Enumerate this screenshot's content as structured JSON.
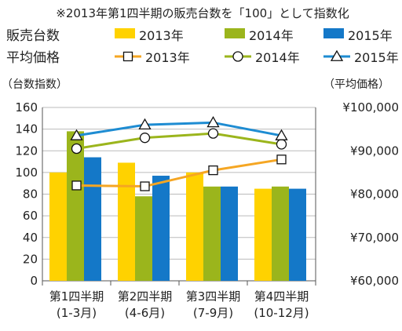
{
  "chart_data": {
    "type": "bar",
    "note": "※2013年第1四半期の販売台数を「100」として指数化",
    "legend": {
      "bar_heading": "販売台数",
      "line_heading": "平均価格",
      "labels": [
        "2013年",
        "2014年",
        "2015年"
      ]
    },
    "categories": [
      {
        "line1": "第1四半期",
        "line2": "(1-3月)"
      },
      {
        "line1": "第2四半期",
        "line2": "(4-6月)"
      },
      {
        "line1": "第3四半期",
        "line2": "(7-9月)"
      },
      {
        "line1": "第4四半期",
        "line2": "(10-12月)"
      }
    ],
    "left_axis": {
      "label": "（台数指数）",
      "ylim": [
        0,
        160
      ],
      "ticks": [
        "0",
        "20",
        "40",
        "60",
        "80",
        "100",
        "120",
        "140",
        "160"
      ]
    },
    "right_axis": {
      "label": "（平均価格）",
      "ylim": [
        60000,
        100000
      ],
      "ticks": [
        "¥60,000",
        "¥70,000",
        "¥80,000",
        "¥90,000",
        "¥100,000"
      ]
    },
    "bar_series": [
      {
        "name": "2013年",
        "color": "#FFD200",
        "values": [
          100,
          109,
          100,
          85
        ]
      },
      {
        "name": "2014年",
        "color": "#9BB51C",
        "values": [
          138,
          78,
          87,
          87
        ]
      },
      {
        "name": "2015年",
        "color": "#1478C8",
        "values": [
          114,
          97,
          87,
          85
        ]
      }
    ],
    "line_series": [
      {
        "name": "2013年",
        "color": "#F5A623",
        "marker": "square",
        "values": [
          82000,
          81800,
          85500,
          88000
        ]
      },
      {
        "name": "2014年",
        "color": "#9BB51C",
        "marker": "circle",
        "values": [
          90500,
          93000,
          94000,
          91500
        ]
      },
      {
        "name": "2015年",
        "color": "#1E8CD2",
        "marker": "triangle",
        "values": [
          93500,
          96000,
          96500,
          93500
        ]
      }
    ],
    "grid": true
  }
}
